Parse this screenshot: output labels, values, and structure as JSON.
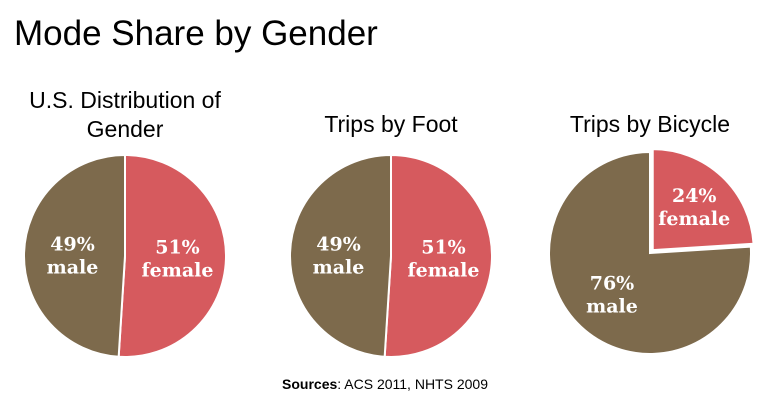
{
  "title": "Mode Share by Gender",
  "chart_data": [
    {
      "type": "pie",
      "title": "U.S. Distribution of Gender",
      "title_lines": [
        "U.S. Distribution of",
        "Gender"
      ],
      "categories": [
        "female",
        "male"
      ],
      "values": [
        51,
        49
      ],
      "labels": [
        [
          "51%",
          "female"
        ],
        [
          "49%",
          "male"
        ]
      ],
      "colors": [
        "#d65a5e",
        "#7d6a4c"
      ]
    },
    {
      "type": "pie",
      "title": "Trips by Foot",
      "title_lines": [
        "Trips by Foot"
      ],
      "categories": [
        "female",
        "male"
      ],
      "values": [
        51,
        49
      ],
      "labels": [
        [
          "51%",
          "female"
        ],
        [
          "49%",
          "male"
        ]
      ],
      "colors": [
        "#d65a5e",
        "#7d6a4c"
      ]
    },
    {
      "type": "pie",
      "title": "Trips by Bicycle",
      "title_lines": [
        "Trips by Bicycle"
      ],
      "categories": [
        "female",
        "male"
      ],
      "values": [
        24,
        76
      ],
      "labels": [
        [
          "24%",
          "female"
        ],
        [
          "76%",
          "male"
        ]
      ],
      "colors": [
        "#d65a5e",
        "#7d6a4c"
      ],
      "exploded_category": "female"
    }
  ],
  "sources": {
    "label": "Sources",
    "text": ": ACS 2011, NHTS 2009"
  }
}
